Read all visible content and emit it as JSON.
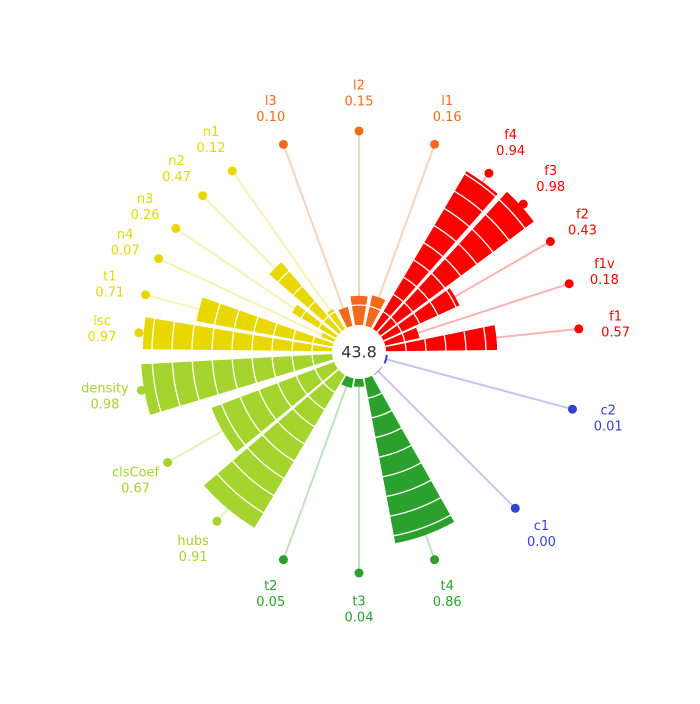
{
  "chart_data": {
    "type": "radial_bar",
    "center_label": "43.8",
    "rlim": [
      0,
      1
    ],
    "categories": [
      "l2",
      "l1",
      "f4",
      "f3",
      "f2",
      "f1v",
      "f1",
      "c2",
      "c1",
      "t4",
      "t3",
      "t2",
      "hubs",
      "clsCoef",
      "density",
      "lsc",
      "t1",
      "n4",
      "n3",
      "n2",
      "n1",
      "l3"
    ],
    "values": [
      0.15,
      0.16,
      0.94,
      0.98,
      0.43,
      0.18,
      0.57,
      0.01,
      0.0,
      0.86,
      0.04,
      0.05,
      0.91,
      0.67,
      0.98,
      0.97,
      0.71,
      0.07,
      0.26,
      0.47,
      0.12,
      0.1
    ],
    "value_labels": [
      "0.15",
      "0.16",
      "0.94",
      "0.98",
      "0.43",
      "0.18",
      "0.57",
      "0.01",
      "0.00",
      "0.86",
      "0.04",
      "0.05",
      "0.91",
      "0.67",
      "0.98",
      "0.97",
      "0.71",
      "0.07",
      "0.26",
      "0.47",
      "0.12",
      "0.10"
    ],
    "colors": [
      "#f26b1d",
      "#f26b1d",
      "#ff0000",
      "#ff0000",
      "#ff0000",
      "#ff0000",
      "#ff0000",
      "#3344cc",
      "#3344cc",
      "#2ca02c",
      "#2ca02c",
      "#2ca02c",
      "#a6d42e",
      "#a6d42e",
      "#a6d42e",
      "#e8d800",
      "#e8d800",
      "#e8d800",
      "#e8d800",
      "#e8d800",
      "#e8d800",
      "#f26b1d"
    ]
  }
}
